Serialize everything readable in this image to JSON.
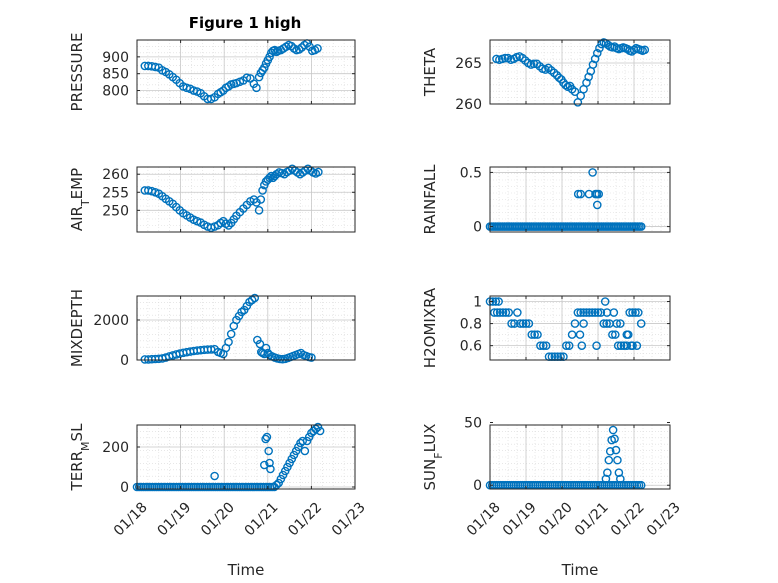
{
  "figure": {
    "title": "Figure 1 high",
    "marker_color": "#0072BD",
    "xlabel": "Time",
    "x_tick_labels": [
      "01/18",
      "01/19",
      "01/20",
      "01/21",
      "01/22",
      "01/23"
    ]
  },
  "chart_data": [
    {
      "type": "scatter",
      "title": "Figure 1 high",
      "ylabel": "PRESSURE",
      "xlim": [
        18,
        23
      ],
      "ylim": [
        760,
        950
      ],
      "yticks": [
        800,
        850,
        900
      ],
      "grid": true,
      "x": [
        18.18,
        18.26,
        18.34,
        18.42,
        18.5,
        18.58,
        18.66,
        18.74,
        18.82,
        18.9,
        18.98,
        19.06,
        19.14,
        19.22,
        19.3,
        19.38,
        19.46,
        19.54,
        19.62,
        19.7,
        19.78,
        19.86,
        19.92,
        19.98,
        20.04,
        20.1,
        20.16,
        20.22,
        20.28,
        20.36,
        20.44,
        20.52,
        20.6,
        20.68,
        20.74,
        20.8,
        20.84,
        20.88,
        20.92,
        20.96,
        21.0,
        21.04,
        21.08,
        21.12,
        21.16,
        21.2,
        21.24,
        21.3,
        21.36,
        21.42,
        21.48,
        21.54,
        21.6,
        21.66,
        21.72,
        21.78,
        21.84,
        21.9,
        21.96,
        22.02,
        22.08,
        22.14
      ],
      "y": [
        873,
        873,
        872,
        870,
        868,
        860,
        855,
        848,
        840,
        832,
        822,
        812,
        808,
        805,
        800,
        797,
        792,
        783,
        775,
        775,
        780,
        790,
        795,
        800,
        808,
        812,
        818,
        820,
        822,
        826,
        830,
        838,
        836,
        820,
        808,
        840,
        852,
        860,
        868,
        880,
        890,
        900,
        912,
        918,
        920,
        915,
        918,
        920,
        925,
        930,
        935,
        932,
        925,
        920,
        922,
        928,
        935,
        940,
        930,
        918,
        920,
        925
      ]
    },
    {
      "type": "scatter",
      "ylabel": "THETA",
      "xlim": [
        18,
        23
      ],
      "ylim": [
        260,
        267.8
      ],
      "yticks": [
        260,
        265
      ],
      "grid": true,
      "x": [
        18.18,
        18.26,
        18.34,
        18.42,
        18.5,
        18.58,
        18.66,
        18.74,
        18.82,
        18.9,
        18.98,
        19.06,
        19.14,
        19.22,
        19.3,
        19.38,
        19.46,
        19.54,
        19.62,
        19.7,
        19.78,
        19.86,
        19.92,
        19.98,
        20.04,
        20.1,
        20.16,
        20.22,
        20.28,
        20.36,
        20.44,
        20.52,
        20.6,
        20.68,
        20.74,
        20.8,
        20.86,
        20.92,
        20.98,
        21.04,
        21.1,
        21.16,
        21.22,
        21.28,
        21.34,
        21.4,
        21.46,
        21.52,
        21.58,
        21.64,
        21.7,
        21.76,
        21.82,
        21.88,
        21.94,
        22.0,
        22.06,
        22.12,
        22.18,
        22.24,
        22.3
      ],
      "y": [
        265.5,
        265.4,
        265.5,
        265.6,
        265.6,
        265.4,
        265.5,
        265.7,
        265.8,
        265.6,
        265.3,
        265.0,
        264.8,
        264.9,
        264.9,
        264.6,
        264.3,
        264.2,
        264.4,
        264.1,
        263.8,
        263.5,
        263.2,
        263.0,
        262.6,
        262.3,
        262.1,
        262.2,
        261.8,
        261.5,
        260.2,
        261.0,
        261.8,
        262.6,
        263.3,
        264.0,
        264.8,
        265.5,
        266.2,
        266.8,
        267.3,
        267.5,
        267.4,
        267.2,
        267.0,
        266.9,
        267.0,
        266.8,
        266.7,
        266.8,
        266.9,
        266.8,
        266.7,
        266.5,
        266.4,
        266.6,
        266.8,
        266.7,
        266.6,
        266.5,
        266.6
      ]
    },
    {
      "type": "scatter",
      "ylabel": "AIR_TEMP",
      "xlim": [
        18,
        23
      ],
      "ylim": [
        244,
        262
      ],
      "yticks": [
        250,
        255,
        260
      ],
      "grid": true,
      "x": [
        18.18,
        18.26,
        18.34,
        18.42,
        18.5,
        18.58,
        18.66,
        18.74,
        18.82,
        18.9,
        18.98,
        19.06,
        19.14,
        19.22,
        19.3,
        19.38,
        19.46,
        19.54,
        19.62,
        19.7,
        19.78,
        19.86,
        19.92,
        19.98,
        20.04,
        20.1,
        20.16,
        20.22,
        20.28,
        20.36,
        20.44,
        20.52,
        20.6,
        20.68,
        20.74,
        20.8,
        20.84,
        20.88,
        20.92,
        20.96,
        21.0,
        21.04,
        21.08,
        21.12,
        21.16,
        21.2,
        21.26,
        21.32,
        21.38,
        21.44,
        21.5,
        21.56,
        21.62,
        21.68,
        21.74,
        21.8,
        21.86,
        21.92,
        21.98,
        22.04,
        22.1,
        22.16
      ],
      "y": [
        255.5,
        255.5,
        255.3,
        255.0,
        254.6,
        253.9,
        253.2,
        252.5,
        251.8,
        250.9,
        250.0,
        249.2,
        248.6,
        248.0,
        247.4,
        247.0,
        246.6,
        246.0,
        245.5,
        245.2,
        245.5,
        245.9,
        246.5,
        247.0,
        246.3,
        245.8,
        246.5,
        247.5,
        248.5,
        249.5,
        250.5,
        251.5,
        252.5,
        253.0,
        252.2,
        250.0,
        253.0,
        255.5,
        257.0,
        258.0,
        258.5,
        259.0,
        259.5,
        259.0,
        259.5,
        260.0,
        260.5,
        260.3,
        260.0,
        260.6,
        261.0,
        261.5,
        261.0,
        260.5,
        260.0,
        260.5,
        261.0,
        261.5,
        261.0,
        260.5,
        260.2,
        260.6
      ]
    },
    {
      "type": "scatter",
      "ylabel": "RAINFALL",
      "xlim": [
        18,
        23
      ],
      "ylim": [
        -0.05,
        0.55
      ],
      "yticks": [
        0,
        0.5
      ],
      "grid": true,
      "x": [
        18.0,
        18.05,
        18.1,
        18.15,
        18.2,
        18.25,
        18.3,
        18.35,
        18.4,
        18.45,
        18.5,
        18.55,
        18.6,
        18.65,
        18.7,
        18.75,
        18.8,
        18.85,
        18.9,
        18.95,
        19.0,
        19.05,
        19.1,
        19.15,
        19.2,
        19.25,
        19.3,
        19.35,
        19.4,
        19.45,
        19.5,
        19.55,
        19.6,
        19.65,
        19.7,
        19.75,
        19.8,
        19.85,
        19.9,
        19.95,
        20.0,
        20.05,
        20.1,
        20.15,
        20.2,
        20.25,
        20.3,
        20.35,
        20.4,
        20.45,
        20.5,
        20.55,
        20.6,
        20.65,
        20.7,
        20.75,
        20.8,
        20.85,
        20.9,
        20.95,
        21.0,
        21.05,
        21.1,
        21.15,
        21.2,
        21.25,
        21.3,
        21.35,
        21.4,
        21.45,
        21.5,
        21.55,
        21.6,
        21.65,
        21.7,
        21.75,
        21.8,
        21.85,
        21.9,
        21.95,
        22.0,
        22.05,
        22.1,
        22.15,
        22.2,
        20.45,
        20.52,
        20.75,
        20.85,
        20.93,
        20.97,
        21.02,
        20.98
      ],
      "y": [
        0,
        0,
        0,
        0,
        0,
        0,
        0,
        0,
        0,
        0,
        0,
        0,
        0,
        0,
        0,
        0,
        0,
        0,
        0,
        0,
        0,
        0,
        0,
        0,
        0,
        0,
        0,
        0,
        0,
        0,
        0,
        0,
        0,
        0,
        0,
        0,
        0,
        0,
        0,
        0,
        0,
        0,
        0,
        0,
        0,
        0,
        0,
        0,
        0,
        0,
        0,
        0,
        0,
        0,
        0,
        0,
        0,
        0,
        0,
        0,
        0,
        0,
        0,
        0,
        0,
        0,
        0,
        0,
        0,
        0,
        0,
        0,
        0,
        0,
        0,
        0,
        0,
        0,
        0,
        0,
        0,
        0,
        0,
        0,
        0,
        0.3,
        0.3,
        0.3,
        0.5,
        0.3,
        0.3,
        0.3,
        0.2
      ]
    },
    {
      "type": "scatter",
      "ylabel": "MIXDEPTH",
      "xlim": [
        18,
        23
      ],
      "ylim": [
        0,
        3200
      ],
      "yticks": [
        0,
        2000
      ],
      "grid": true,
      "x": [
        18.18,
        18.26,
        18.34,
        18.42,
        18.5,
        18.58,
        18.66,
        18.74,
        18.82,
        18.9,
        18.98,
        19.06,
        19.14,
        19.22,
        19.3,
        19.38,
        19.46,
        19.54,
        19.62,
        19.7,
        19.78,
        19.86,
        19.92,
        19.98,
        20.04,
        20.1,
        20.16,
        20.22,
        20.28,
        20.34,
        20.4,
        20.46,
        20.52,
        20.58,
        20.64,
        20.7,
        20.76,
        20.82,
        20.85,
        20.88,
        20.92,
        20.96,
        21.0,
        21.04,
        21.1,
        21.16,
        21.22,
        21.28,
        21.34,
        21.4,
        21.46,
        21.52,
        21.58,
        21.64,
        21.7,
        21.76,
        21.82,
        21.88,
        21.94,
        22.0
      ],
      "y": [
        30,
        30,
        40,
        50,
        60,
        80,
        120,
        180,
        230,
        280,
        320,
        360,
        390,
        420,
        450,
        470,
        490,
        510,
        520,
        530,
        540,
        400,
        350,
        300,
        600,
        900,
        1300,
        1700,
        2000,
        2200,
        2400,
        2500,
        2700,
        2900,
        3000,
        3100,
        1000,
        800,
        400,
        350,
        300,
        600,
        350,
        250,
        180,
        120,
        80,
        50,
        40,
        60,
        100,
        150,
        200,
        250,
        300,
        350,
        250,
        200,
        150,
        120
      ]
    },
    {
      "type": "scatter",
      "ylabel": "H2OMIXRA",
      "xlim": [
        18,
        23
      ],
      "ylim": [
        0.47,
        1.05
      ],
      "yticks": [
        0.6,
        0.8,
        1
      ],
      "grid": true,
      "x": [
        18.0,
        18.08,
        18.16,
        18.24,
        18.12,
        18.2,
        18.28,
        18.36,
        18.44,
        18.52,
        18.6,
        18.68,
        18.76,
        18.84,
        18.92,
        19.0,
        19.08,
        19.16,
        19.24,
        19.32,
        19.4,
        19.48,
        19.56,
        19.64,
        19.72,
        19.8,
        19.88,
        19.96,
        20.04,
        20.12,
        20.2,
        20.28,
        20.36,
        20.44,
        20.52,
        20.6,
        20.68,
        20.76,
        20.84,
        20.92,
        21.0,
        21.08,
        21.16,
        21.24,
        21.32,
        21.4,
        21.48,
        21.56,
        21.64,
        21.72,
        21.8,
        21.88,
        21.96,
        22.04,
        22.12,
        22.2,
        20.6,
        20.5,
        20.55,
        20.96,
        21.2,
        21.25,
        21.44,
        21.52,
        21.62,
        21.8,
        21.84,
        21.92,
        21.96,
        22.08
      ],
      "y": [
        1.0,
        1.0,
        1.0,
        1.0,
        0.9,
        0.9,
        0.9,
        0.9,
        0.9,
        0.9,
        0.8,
        0.8,
        0.9,
        0.8,
        0.8,
        0.8,
        0.8,
        0.7,
        0.7,
        0.7,
        0.6,
        0.6,
        0.6,
        0.5,
        0.5,
        0.5,
        0.5,
        0.5,
        0.5,
        0.6,
        0.6,
        0.7,
        0.8,
        0.9,
        0.9,
        0.9,
        0.9,
        0.9,
        0.9,
        0.9,
        0.9,
        0.9,
        0.8,
        0.8,
        0.8,
        0.7,
        0.7,
        0.6,
        0.6,
        0.6,
        0.6,
        0.9,
        0.9,
        0.9,
        0.9,
        0.8,
        0.8,
        0.7,
        0.6,
        0.6,
        1.0,
        0.9,
        0.9,
        0.8,
        0.8,
        0.7,
        0.7,
        0.6,
        0.6,
        0.6
      ]
    },
    {
      "type": "scatter",
      "ylabel": "TERR_MSL",
      "xlim": [
        18,
        23
      ],
      "ylim": [
        -10,
        310
      ],
      "yticks": [
        0,
        200
      ],
      "grid": true,
      "x": [
        18.0,
        18.05,
        18.1,
        18.15,
        18.2,
        18.25,
        18.3,
        18.35,
        18.4,
        18.45,
        18.5,
        18.55,
        18.6,
        18.65,
        18.7,
        18.75,
        18.8,
        18.85,
        18.9,
        18.95,
        19.0,
        19.05,
        19.1,
        19.15,
        19.2,
        19.25,
        19.3,
        19.35,
        19.4,
        19.45,
        19.5,
        19.55,
        19.6,
        19.65,
        19.7,
        19.75,
        19.8,
        19.85,
        19.9,
        19.95,
        20.0,
        20.05,
        20.1,
        20.15,
        20.2,
        20.25,
        20.3,
        20.35,
        20.4,
        20.45,
        20.5,
        20.55,
        20.6,
        20.65,
        20.7,
        20.75,
        20.8,
        20.85,
        20.9,
        20.95,
        21.0,
        21.05,
        21.1,
        21.15,
        21.2,
        21.25,
        21.3,
        21.35,
        21.4,
        21.45,
        21.5,
        21.55,
        21.6,
        21.65,
        21.7,
        21.75,
        21.8,
        21.85,
        21.9,
        21.95,
        22.0,
        22.05,
        22.1,
        22.15,
        22.2,
        19.78,
        20.95,
        20.98,
        21.02,
        21.04,
        20.92,
        21.06
      ],
      "y": [
        0,
        0,
        0,
        0,
        0,
        0,
        0,
        0,
        0,
        0,
        0,
        0,
        0,
        0,
        0,
        0,
        0,
        0,
        0,
        0,
        0,
        0,
        0,
        0,
        0,
        0,
        0,
        0,
        0,
        0,
        0,
        0,
        0,
        0,
        0,
        0,
        0,
        0,
        0,
        0,
        0,
        0,
        0,
        0,
        0,
        0,
        0,
        0,
        0,
        0,
        0,
        0,
        0,
        0,
        0,
        0,
        0,
        0,
        0,
        0,
        0,
        0,
        0,
        0,
        10,
        20,
        40,
        60,
        80,
        100,
        120,
        140,
        160,
        180,
        200,
        220,
        230,
        180,
        230,
        250,
        270,
        280,
        290,
        300,
        280,
        55,
        240,
        250,
        180,
        120,
        110,
        90
      ]
    },
    {
      "type": "scatter",
      "ylabel": "SUN_FLUX",
      "xlim": [
        18,
        23
      ],
      "ylim": [
        -3,
        48
      ],
      "yticks": [
        0,
        50
      ],
      "grid": true,
      "x": [
        18.0,
        18.06,
        18.12,
        18.18,
        18.24,
        18.3,
        18.36,
        18.42,
        18.48,
        18.54,
        18.6,
        18.66,
        18.72,
        18.78,
        18.84,
        18.9,
        18.96,
        19.02,
        19.08,
        19.14,
        19.2,
        19.26,
        19.32,
        19.38,
        19.44,
        19.5,
        19.56,
        19.62,
        19.68,
        19.74,
        19.8,
        19.86,
        19.92,
        19.98,
        20.04,
        20.1,
        20.16,
        20.22,
        20.28,
        20.34,
        20.4,
        20.46,
        20.52,
        20.58,
        20.64,
        20.7,
        20.76,
        20.82,
        20.88,
        20.94,
        21.0,
        21.06,
        21.12,
        21.18,
        21.24,
        21.3,
        21.36,
        21.42,
        21.48,
        21.54,
        21.6,
        21.66,
        21.72,
        21.78,
        21.84,
        21.9,
        21.96,
        22.02,
        22.08,
        22.14,
        22.2,
        21.22,
        21.26,
        21.3,
        21.34,
        21.38,
        21.42,
        21.46,
        21.5,
        21.54,
        21.58,
        21.62
      ],
      "y": [
        0,
        0,
        0,
        0,
        0,
        0,
        0,
        0,
        0,
        0,
        0,
        0,
        0,
        0,
        0,
        0,
        0,
        0,
        0,
        0,
        0,
        0,
        0,
        0,
        0,
        0,
        0,
        0,
        0,
        0,
        0,
        0,
        0,
        0,
        0,
        0,
        0,
        0,
        0,
        0,
        0,
        0,
        0,
        0,
        0,
        0,
        0,
        0,
        0,
        0,
        0,
        0,
        0,
        0,
        0,
        0,
        0,
        0,
        0,
        0,
        0,
        0,
        0,
        0,
        0,
        0,
        0,
        0,
        0,
        0,
        0,
        5,
        10,
        20,
        27,
        36,
        44,
        37,
        28,
        20,
        10,
        5
      ]
    }
  ]
}
